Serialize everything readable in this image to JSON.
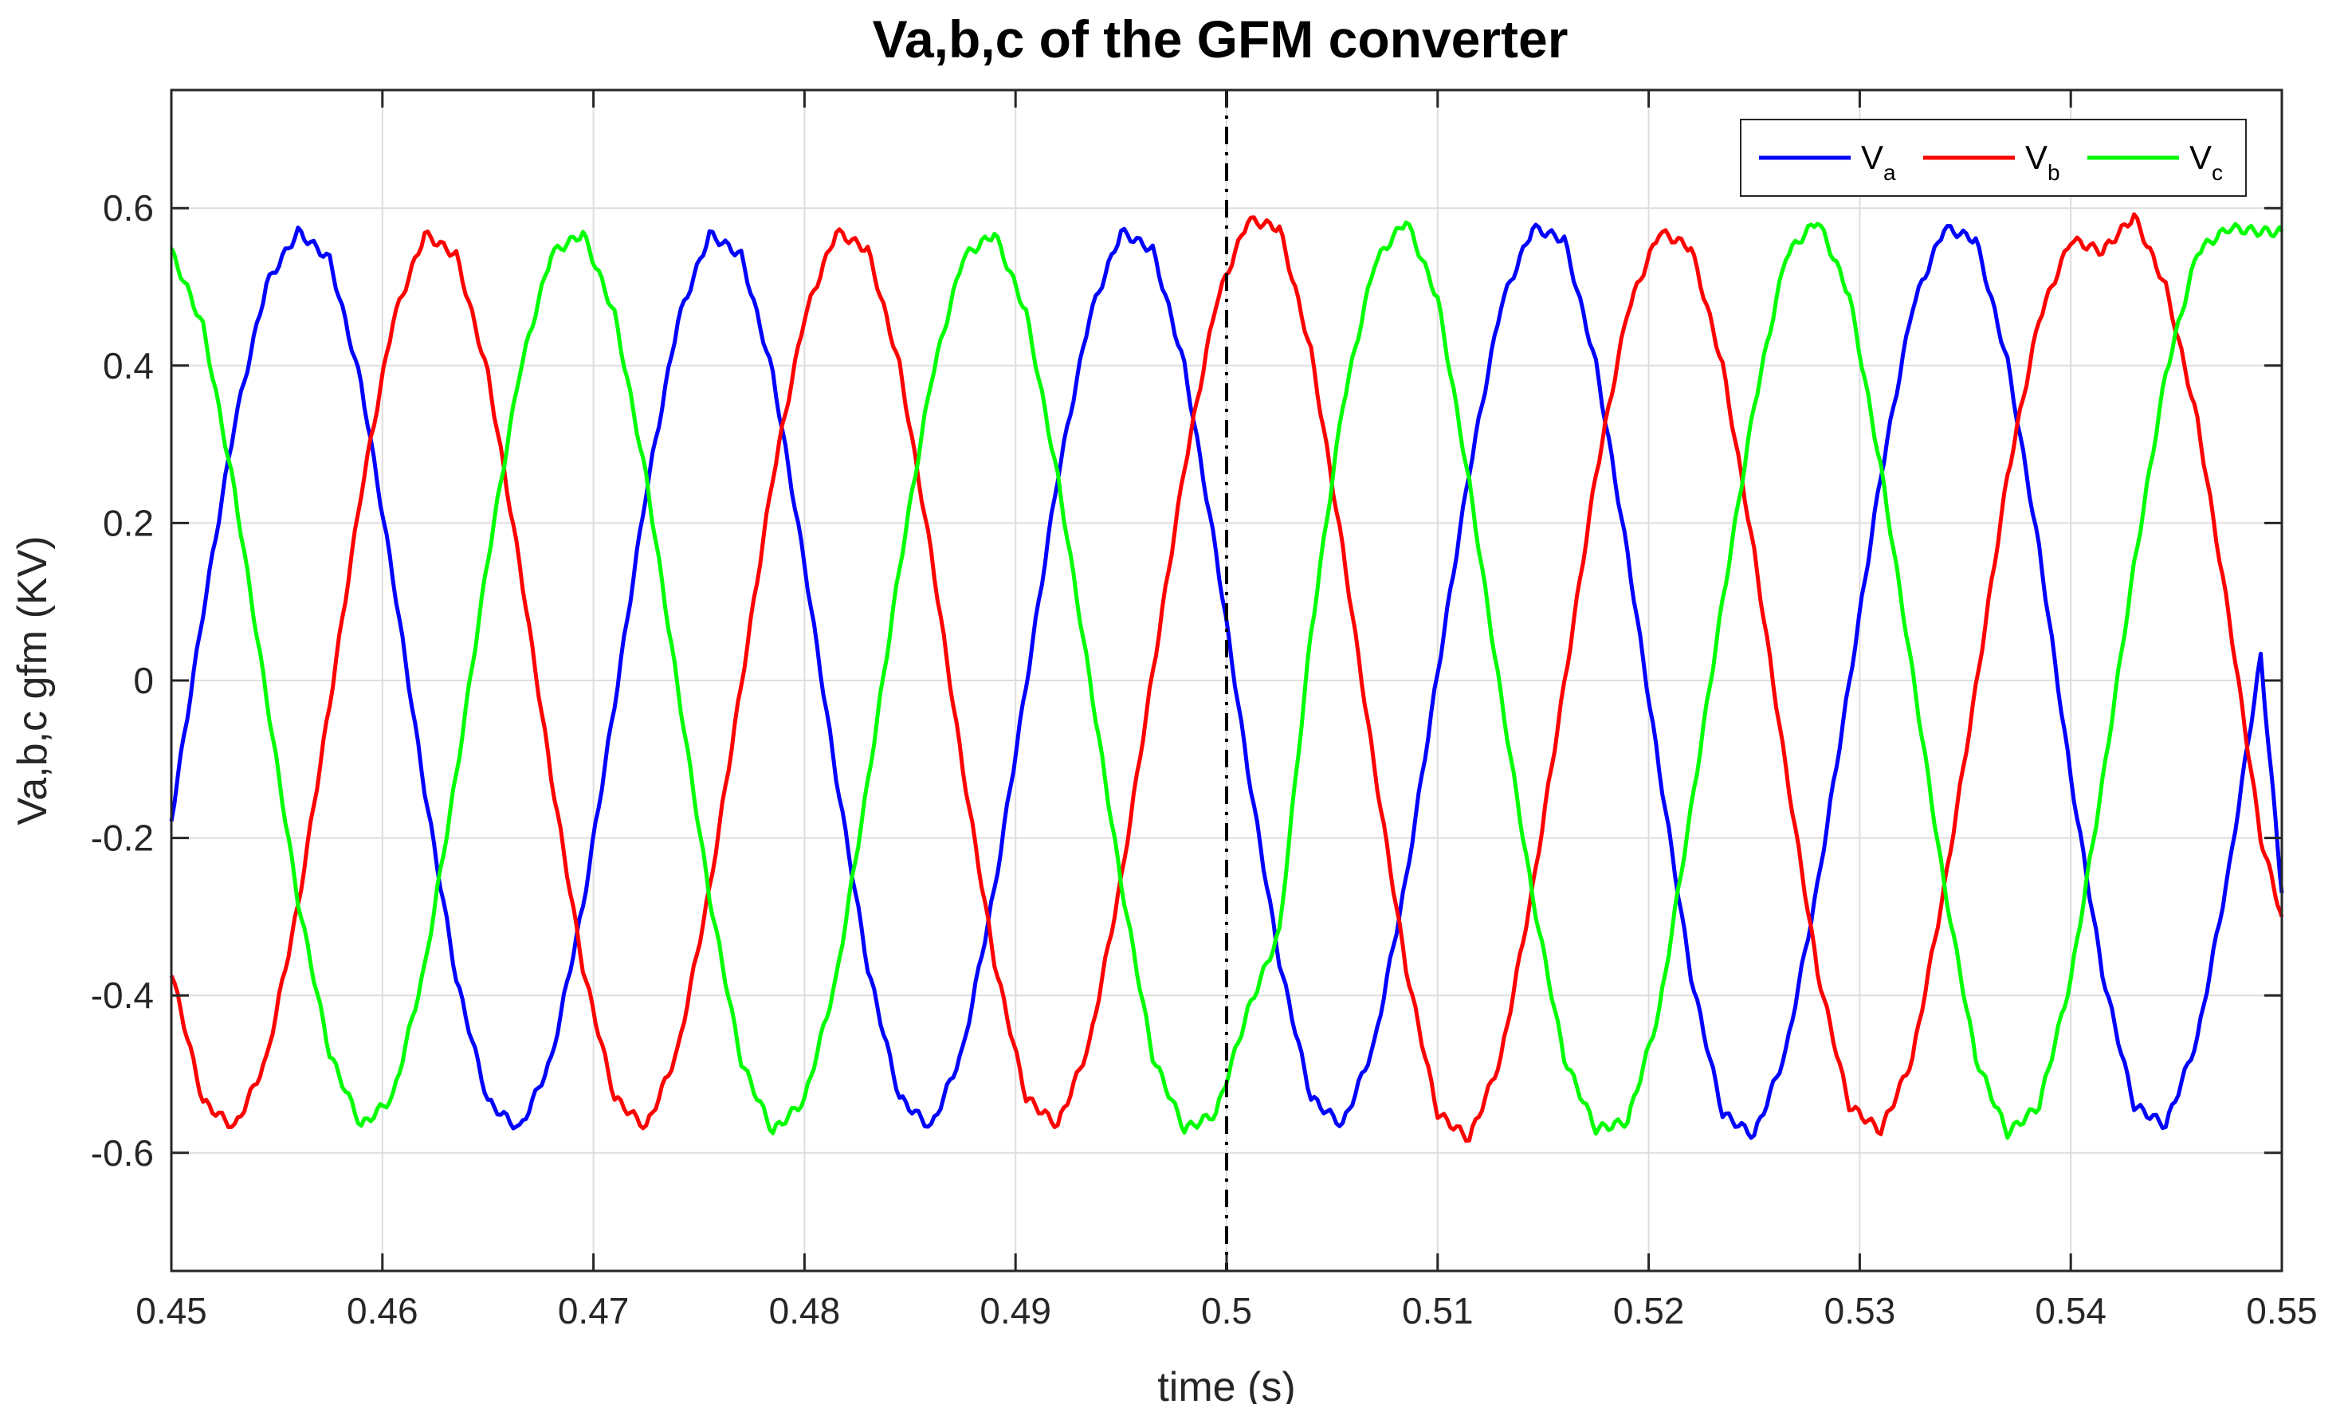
{
  "chart_data": {
    "type": "line",
    "title": "Va,b,c of the GFM converter",
    "xlabel": "time (s)",
    "ylabel": "Va,b,c gfm (KV)",
    "xlim": [
      0.45,
      0.55
    ],
    "ylim": [
      -0.75,
      0.75
    ],
    "xticks": [
      0.45,
      0.46,
      0.47,
      0.48,
      0.49,
      0.5,
      0.51,
      0.52,
      0.53,
      0.54,
      0.55
    ],
    "xtick_labels": [
      "0.45",
      "0.46",
      "0.47",
      "0.48",
      "0.49",
      "0.5",
      "0.51",
      "0.52",
      "0.53",
      "0.54",
      "0.55"
    ],
    "yticks": [
      -0.6,
      -0.4,
      -0.2,
      0,
      0.2,
      0.4,
      0.6
    ],
    "ytick_labels": [
      "-0.6",
      "-0.4",
      "-0.2",
      "0",
      "0.2",
      "0.4",
      "0.6"
    ],
    "grid": true,
    "legend_position": "top-right",
    "legend_orientation": "horizontal",
    "event_line": {
      "x": 0.5,
      "style": "dash-dot",
      "color": "#000000"
    },
    "series": [
      {
        "name": "V",
        "subscript": "a",
        "color": "#0000ff",
        "x": [
          0.45,
          0.4515,
          0.453,
          0.4545,
          0.456,
          0.4575,
          0.459,
          0.4605,
          0.462,
          0.4635,
          0.465,
          0.4665,
          0.468,
          0.4695,
          0.471,
          0.4725,
          0.474,
          0.4755,
          0.477,
          0.4785,
          0.48,
          0.4815,
          0.483,
          0.4845,
          0.486,
          0.4875,
          0.489,
          0.4905,
          0.492,
          0.4935,
          0.495,
          0.4965,
          0.498,
          0.4995,
          0.501,
          0.5025,
          0.504,
          0.5055,
          0.507,
          0.5085,
          0.51,
          0.5115,
          0.513,
          0.5145,
          0.516,
          0.5175,
          0.519,
          0.5205,
          0.522,
          0.5235,
          0.525,
          0.5265,
          0.528,
          0.5295,
          0.531,
          0.5325,
          0.534,
          0.5355,
          0.537,
          0.5385,
          0.54,
          0.5415,
          0.543,
          0.5445,
          0.546,
          0.5475,
          0.549,
          0.55
        ],
        "y": [
          -0.176,
          0.086,
          0.327,
          0.503,
          0.57,
          0.535,
          0.376,
          0.131,
          -0.139,
          -0.379,
          -0.535,
          -0.57,
          -0.482,
          -0.287,
          -0.03,
          0.24,
          0.457,
          0.567,
          0.54,
          0.389,
          0.148,
          -0.122,
          -0.365,
          -0.53,
          -0.568,
          -0.47,
          -0.266,
          -0.006,
          0.259,
          0.462,
          0.57,
          0.547,
          0.4,
          0.162,
          -0.112,
          -0.357,
          -0.53,
          -0.565,
          -0.462,
          -0.254,
          0.01,
          0.266,
          0.477,
          0.575,
          0.56,
          0.402,
          0.16,
          -0.113,
          -0.375,
          -0.55,
          -0.578,
          -0.472,
          -0.261,
          -0.004,
          0.261,
          0.475,
          0.575,
          0.56,
          0.405,
          0.167,
          -0.123,
          -0.372,
          -0.54,
          -0.565,
          -0.455,
          -0.24,
          0.03,
          -0.27
        ]
      },
      {
        "name": "V",
        "subscript": "b",
        "color": "#ff0000",
        "x": [
          0.45,
          0.4515,
          0.453,
          0.4545,
          0.456,
          0.4575,
          0.459,
          0.4605,
          0.462,
          0.4635,
          0.465,
          0.4665,
          0.468,
          0.4695,
          0.471,
          0.4725,
          0.474,
          0.4755,
          0.477,
          0.4785,
          0.48,
          0.4815,
          0.483,
          0.4845,
          0.486,
          0.4875,
          0.489,
          0.4905,
          0.492,
          0.4935,
          0.495,
          0.4965,
          0.498,
          0.4995,
          0.501,
          0.5025,
          0.504,
          0.5055,
          0.507,
          0.5085,
          0.51,
          0.5115,
          0.513,
          0.5145,
          0.516,
          0.5175,
          0.519,
          0.5205,
          0.522,
          0.5235,
          0.525,
          0.5265,
          0.528,
          0.5295,
          0.531,
          0.5325,
          0.534,
          0.5355,
          0.537,
          0.5385,
          0.54,
          0.5415,
          0.543,
          0.5445,
          0.546,
          0.5475,
          0.549,
          0.55
        ],
        "y": [
          -0.37,
          -0.535,
          -0.568,
          -0.482,
          -0.287,
          -0.03,
          0.24,
          0.457,
          0.567,
          0.54,
          0.389,
          0.148,
          -0.122,
          -0.365,
          -0.53,
          -0.568,
          -0.47,
          -0.266,
          -0.006,
          0.259,
          0.462,
          0.57,
          0.547,
          0.4,
          0.162,
          -0.112,
          -0.357,
          -0.53,
          -0.565,
          -0.462,
          -0.254,
          0.01,
          0.27,
          0.48,
          0.585,
          0.575,
          0.418,
          0.168,
          -0.11,
          -0.365,
          -0.55,
          -0.582,
          -0.48,
          -0.265,
          -0.005,
          0.262,
          0.47,
          0.57,
          0.55,
          0.4,
          0.162,
          -0.112,
          -0.37,
          -0.54,
          -0.572,
          -0.48,
          -0.265,
          -0.01,
          0.26,
          0.46,
          0.56,
          0.545,
          0.59,
          0.5,
          0.33,
          0.08,
          -0.2,
          -0.3
        ]
      },
      {
        "name": "V",
        "subscript": "c",
        "color": "#00ff00",
        "x": [
          0.45,
          0.4515,
          0.453,
          0.4545,
          0.456,
          0.4575,
          0.459,
          0.4605,
          0.462,
          0.4635,
          0.465,
          0.4665,
          0.468,
          0.4695,
          0.471,
          0.4725,
          0.474,
          0.4755,
          0.477,
          0.4785,
          0.48,
          0.4815,
          0.483,
          0.4845,
          0.486,
          0.4875,
          0.489,
          0.4905,
          0.492,
          0.4935,
          0.495,
          0.4965,
          0.498,
          0.4995,
          0.501,
          0.5025,
          0.504,
          0.5055,
          0.507,
          0.5085,
          0.51,
          0.5115,
          0.513,
          0.5145,
          0.516,
          0.5175,
          0.519,
          0.5205,
          0.522,
          0.5235,
          0.525,
          0.5265,
          0.528,
          0.5295,
          0.531,
          0.5325,
          0.534,
          0.5355,
          0.537,
          0.5385,
          0.54,
          0.5415,
          0.543,
          0.5445,
          0.546,
          0.5475,
          0.549,
          0.55
        ],
        "y": [
          0.545,
          0.45,
          0.24,
          -0.02,
          -0.28,
          -0.474,
          -0.566,
          -0.529,
          -0.365,
          -0.12,
          0.155,
          0.392,
          0.542,
          0.568,
          0.465,
          0.258,
          -0.01,
          -0.275,
          -0.484,
          -0.573,
          -0.533,
          -0.38,
          -0.13,
          0.143,
          0.382,
          0.537,
          0.568,
          0.467,
          0.258,
          0.004,
          -0.257,
          -0.478,
          -0.57,
          -0.55,
          -0.42,
          -0.32,
          0.06,
          0.35,
          0.53,
          0.585,
          0.485,
          0.25,
          -0.02,
          -0.275,
          -0.48,
          -0.57,
          -0.56,
          -0.42,
          -0.165,
          0.1,
          0.35,
          0.54,
          0.585,
          0.49,
          0.27,
          0.01,
          -0.26,
          -0.48,
          -0.575,
          -0.54,
          -0.38,
          -0.13,
          0.146,
          0.39,
          0.545,
          0.575,
          0.57,
          0.57
        ]
      }
    ]
  }
}
